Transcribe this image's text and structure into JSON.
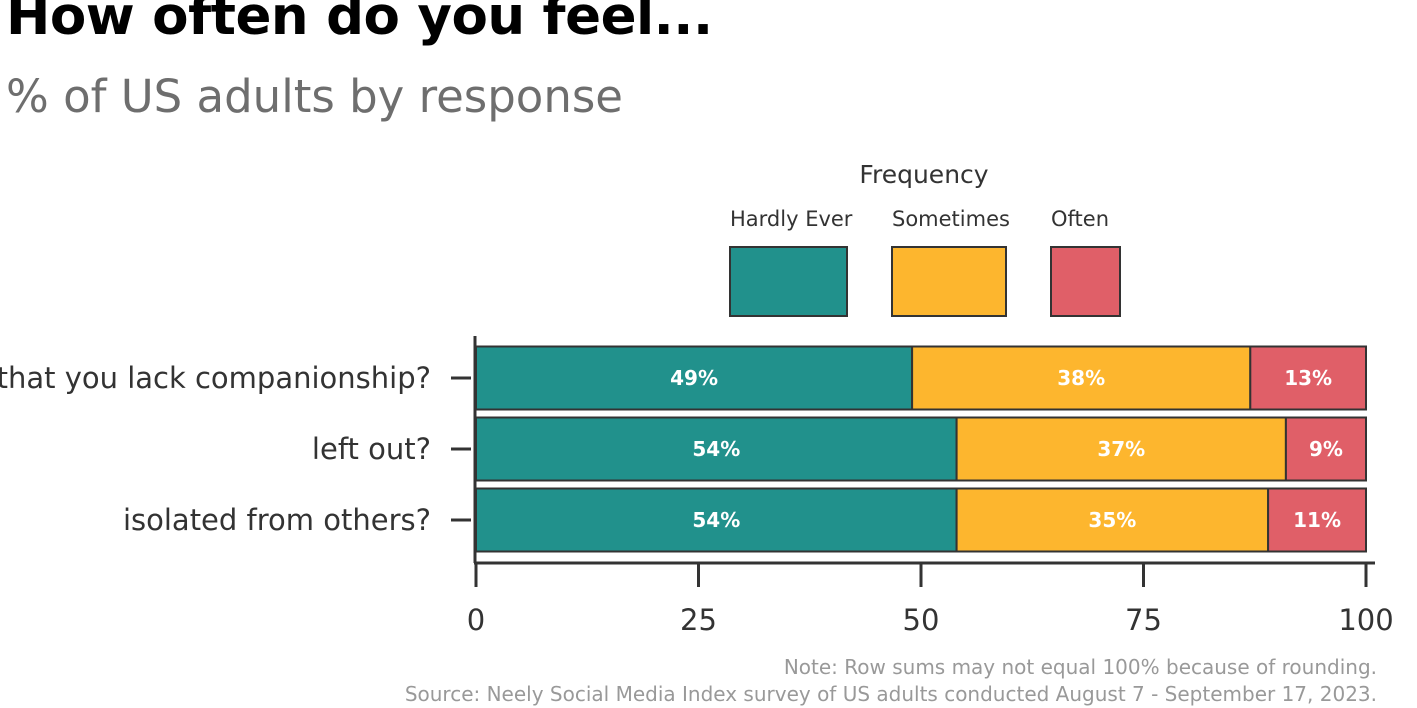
{
  "chart_data": {
    "type": "bar",
    "orientation": "horizontal",
    "stacked": true,
    "title": "How often do you feel...",
    "subtitle": "% of US adults by response",
    "categories": [
      "that you lack companionship?",
      "left out?",
      "isolated from others?"
    ],
    "series": [
      {
        "name": "Hardly Ever",
        "color": "#21918c",
        "values": [
          49,
          54,
          54
        ]
      },
      {
        "name": "Sometimes",
        "color": "#fdb62e",
        "values": [
          38,
          37,
          35
        ]
      },
      {
        "name": "Often",
        "color": "#e05f68",
        "values": [
          13,
          9,
          11
        ]
      }
    ],
    "data_labels": [
      [
        "49%",
        "54%",
        "54%"
      ],
      [
        "38%",
        "37%",
        "35%"
      ],
      [
        "13%",
        "9%",
        "11%"
      ]
    ],
    "xlim": [
      0,
      100
    ],
    "xticks": [
      0,
      25,
      50,
      75,
      100
    ],
    "xlabel": "",
    "ylabel": "",
    "legend": {
      "title": "Frequency",
      "position": "top"
    },
    "grid": false,
    "note": "Note: Row sums may not equal 100% because of rounding.",
    "source": "Source: Neely Social Media Index survey of US adults conducted August 7 - September 17, 2023."
  }
}
